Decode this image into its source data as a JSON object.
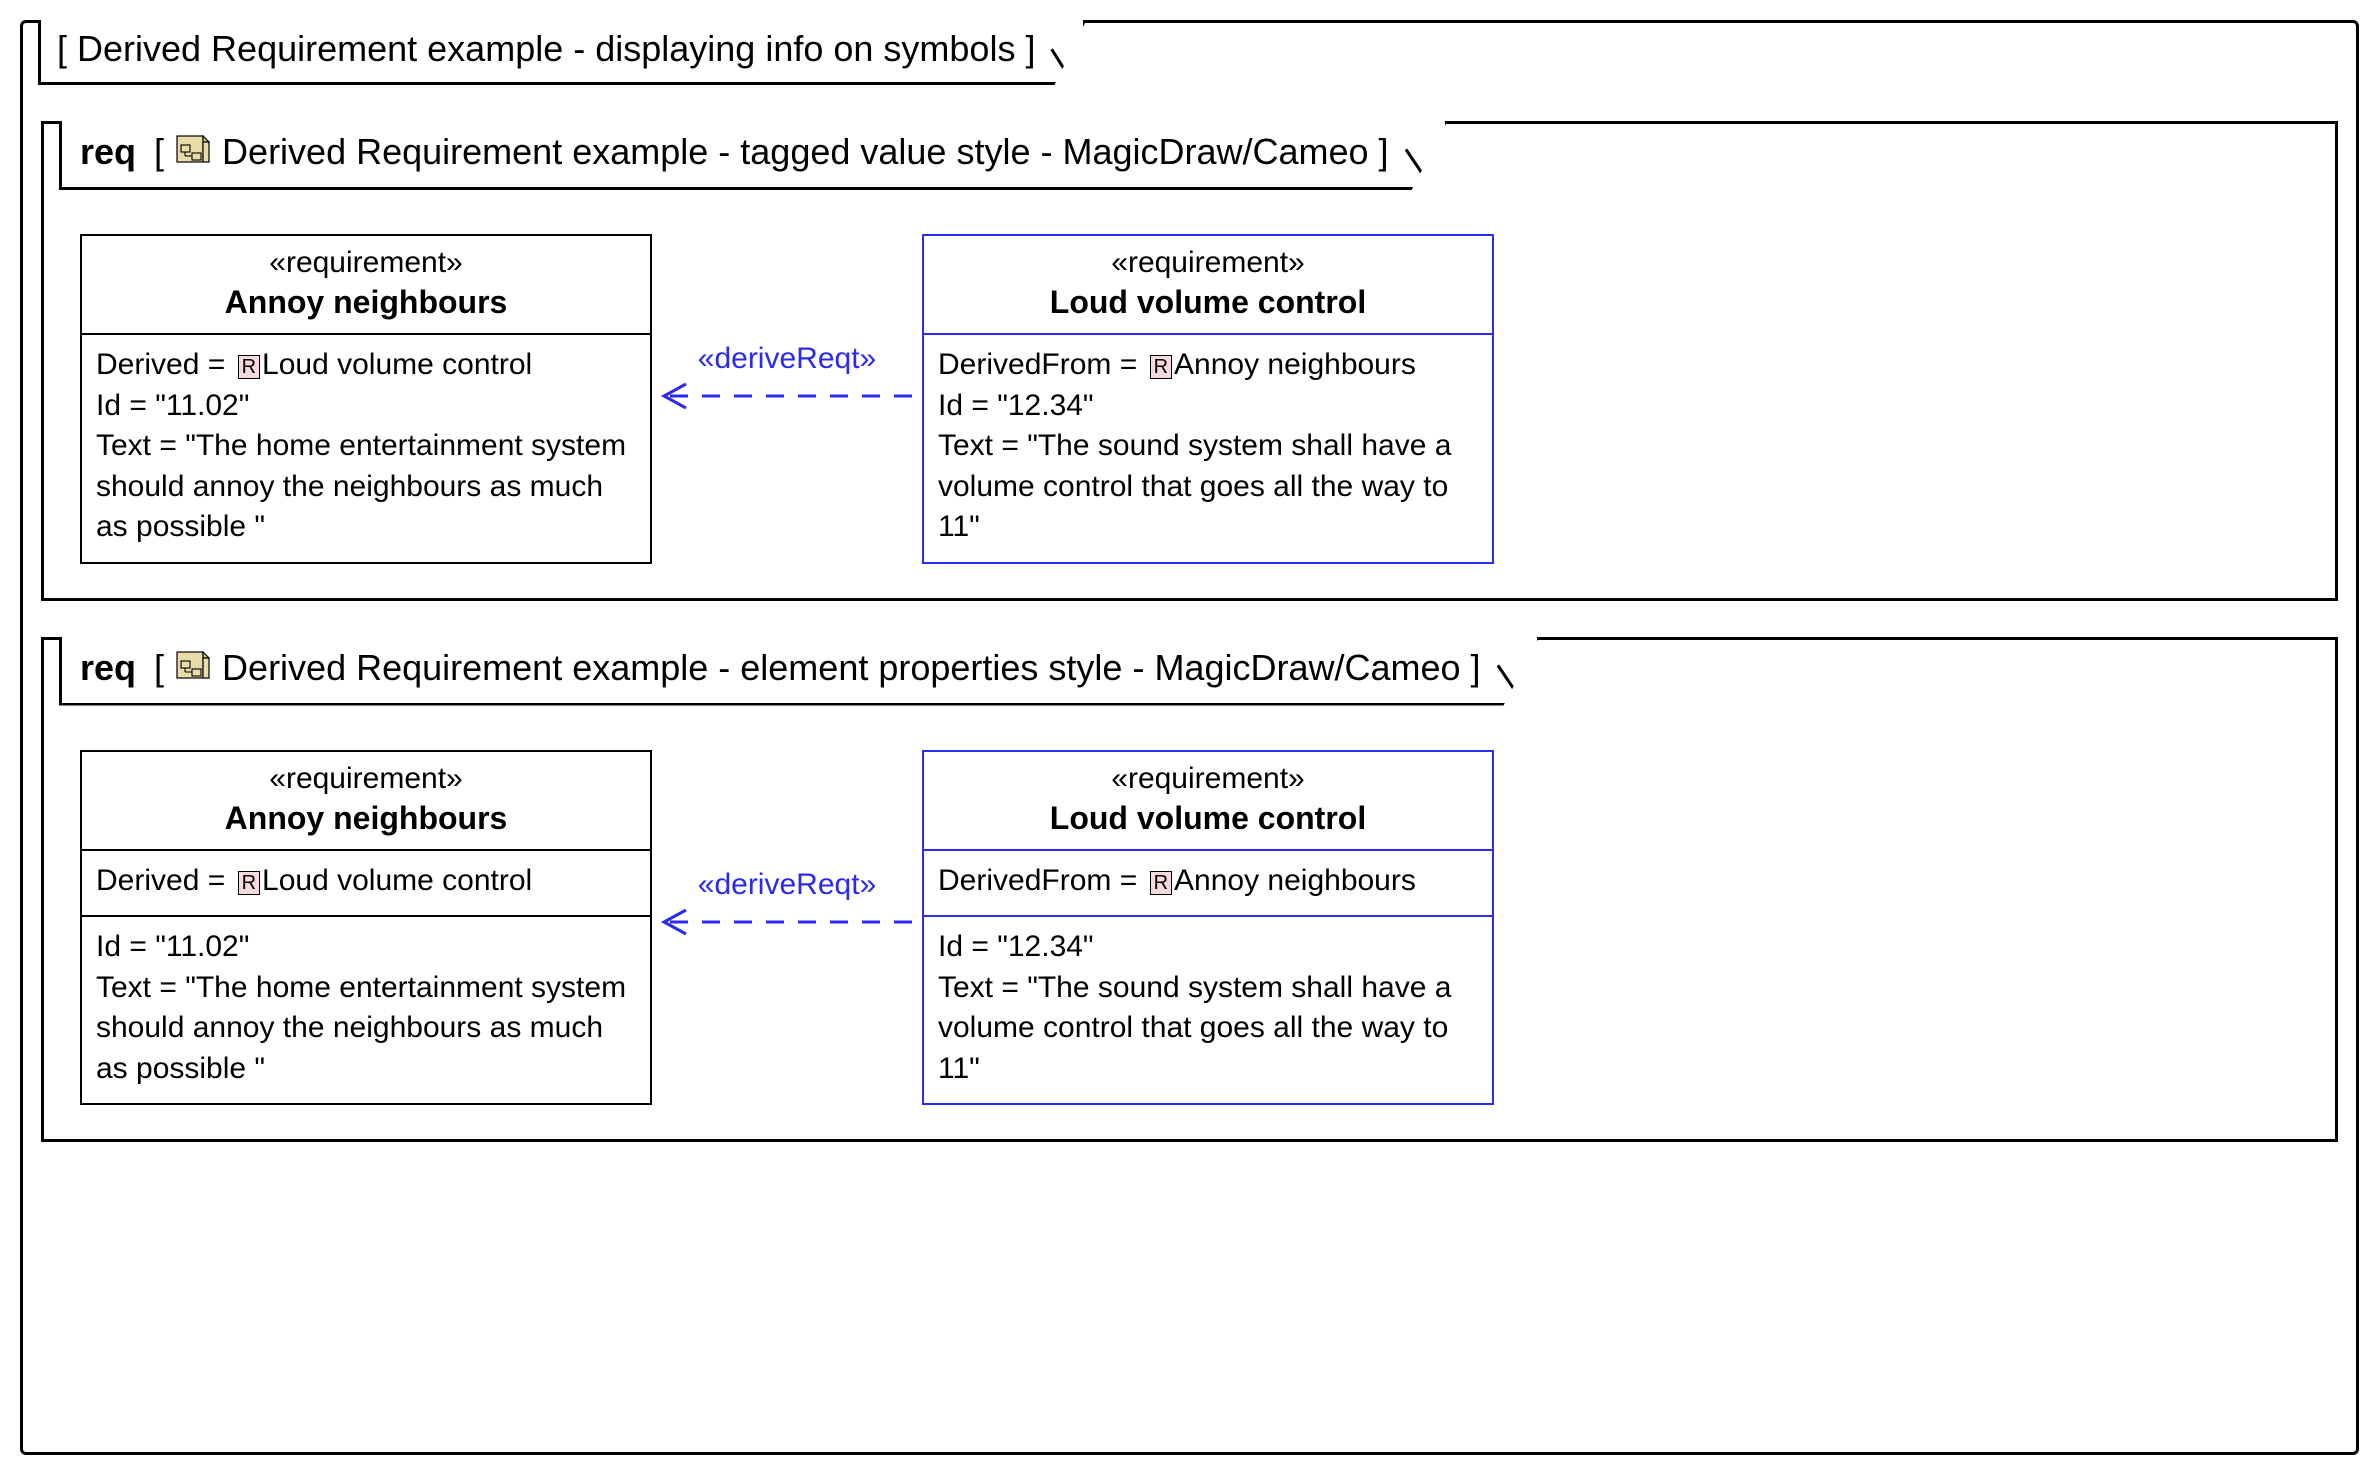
{
  "outerTitle": "[ Derived Requirement example - displaying info on symbols ]",
  "colors": {
    "black": "#000000",
    "blue": "#2a2af0",
    "badgeFill": "#f6d9df",
    "iconFill": "#e9dca8",
    "iconFold": "#d8c98a"
  },
  "fontSizes": {
    "tab": 36,
    "stereo": 30,
    "name": 32,
    "body": 30,
    "connector": 30,
    "badge": 20
  },
  "panels": [
    {
      "kind": "req",
      "title": "Derived Requirement example - tagged value style - MagicDraw/Cameo",
      "connector": {
        "label": "«deriveReqt»",
        "labelTop": 108,
        "lineTop": 150
      },
      "left": {
        "stereotype": "«requirement»",
        "name": "Annoy neighbours",
        "borderColor": "#000000",
        "sections": [
          [
            {
              "type": "kv-badge",
              "key": "Derived",
              "badge": "R",
              "value": "Loud volume control"
            },
            {
              "type": "text",
              "text": "Id = \"11.02\""
            },
            {
              "type": "text",
              "text": "Text = \"The home entertainment system should annoy the neighbours as much as possible \""
            }
          ]
        ]
      },
      "right": {
        "stereotype": "«requirement»",
        "name": "Loud volume control",
        "borderColor": "#2a2af0",
        "sections": [
          [
            {
              "type": "kv-badge",
              "key": "DerivedFrom",
              "badge": "R",
              "value": "Annoy neighbours"
            },
            {
              "type": "text",
              "text": "Id = \"12.34\""
            },
            {
              "type": "text",
              "text": "Text = \"The sound system shall have a volume control that goes all the way to 11\""
            }
          ]
        ]
      }
    },
    {
      "kind": "req",
      "title": "Derived Requirement example - element properties style - MagicDraw/Cameo",
      "connector": {
        "label": "«deriveReqt»",
        "labelTop": 118,
        "lineTop": 160
      },
      "left": {
        "stereotype": "«requirement»",
        "name": "Annoy neighbours",
        "borderColor": "#000000",
        "sections": [
          [
            {
              "type": "kv-badge",
              "key": "Derived",
              "badge": "R",
              "value": "Loud volume control"
            }
          ],
          [
            {
              "type": "text",
              "text": "Id = \"11.02\""
            },
            {
              "type": "text",
              "text": "Text = \"The home entertainment system should annoy the neighbours as much as possible \""
            }
          ]
        ]
      },
      "right": {
        "stereotype": "«requirement»",
        "name": "Loud volume control",
        "borderColor": "#2a2af0",
        "sections": [
          [
            {
              "type": "kv-badge",
              "key": "DerivedFrom",
              "badge": "R",
              "value": "Annoy neighbours"
            }
          ],
          [
            {
              "type": "text",
              "text": "Id = \"12.34\""
            },
            {
              "type": "text",
              "text": "Text = \"The sound system shall have a volume control that goes all the way to 11\""
            }
          ]
        ]
      }
    }
  ]
}
